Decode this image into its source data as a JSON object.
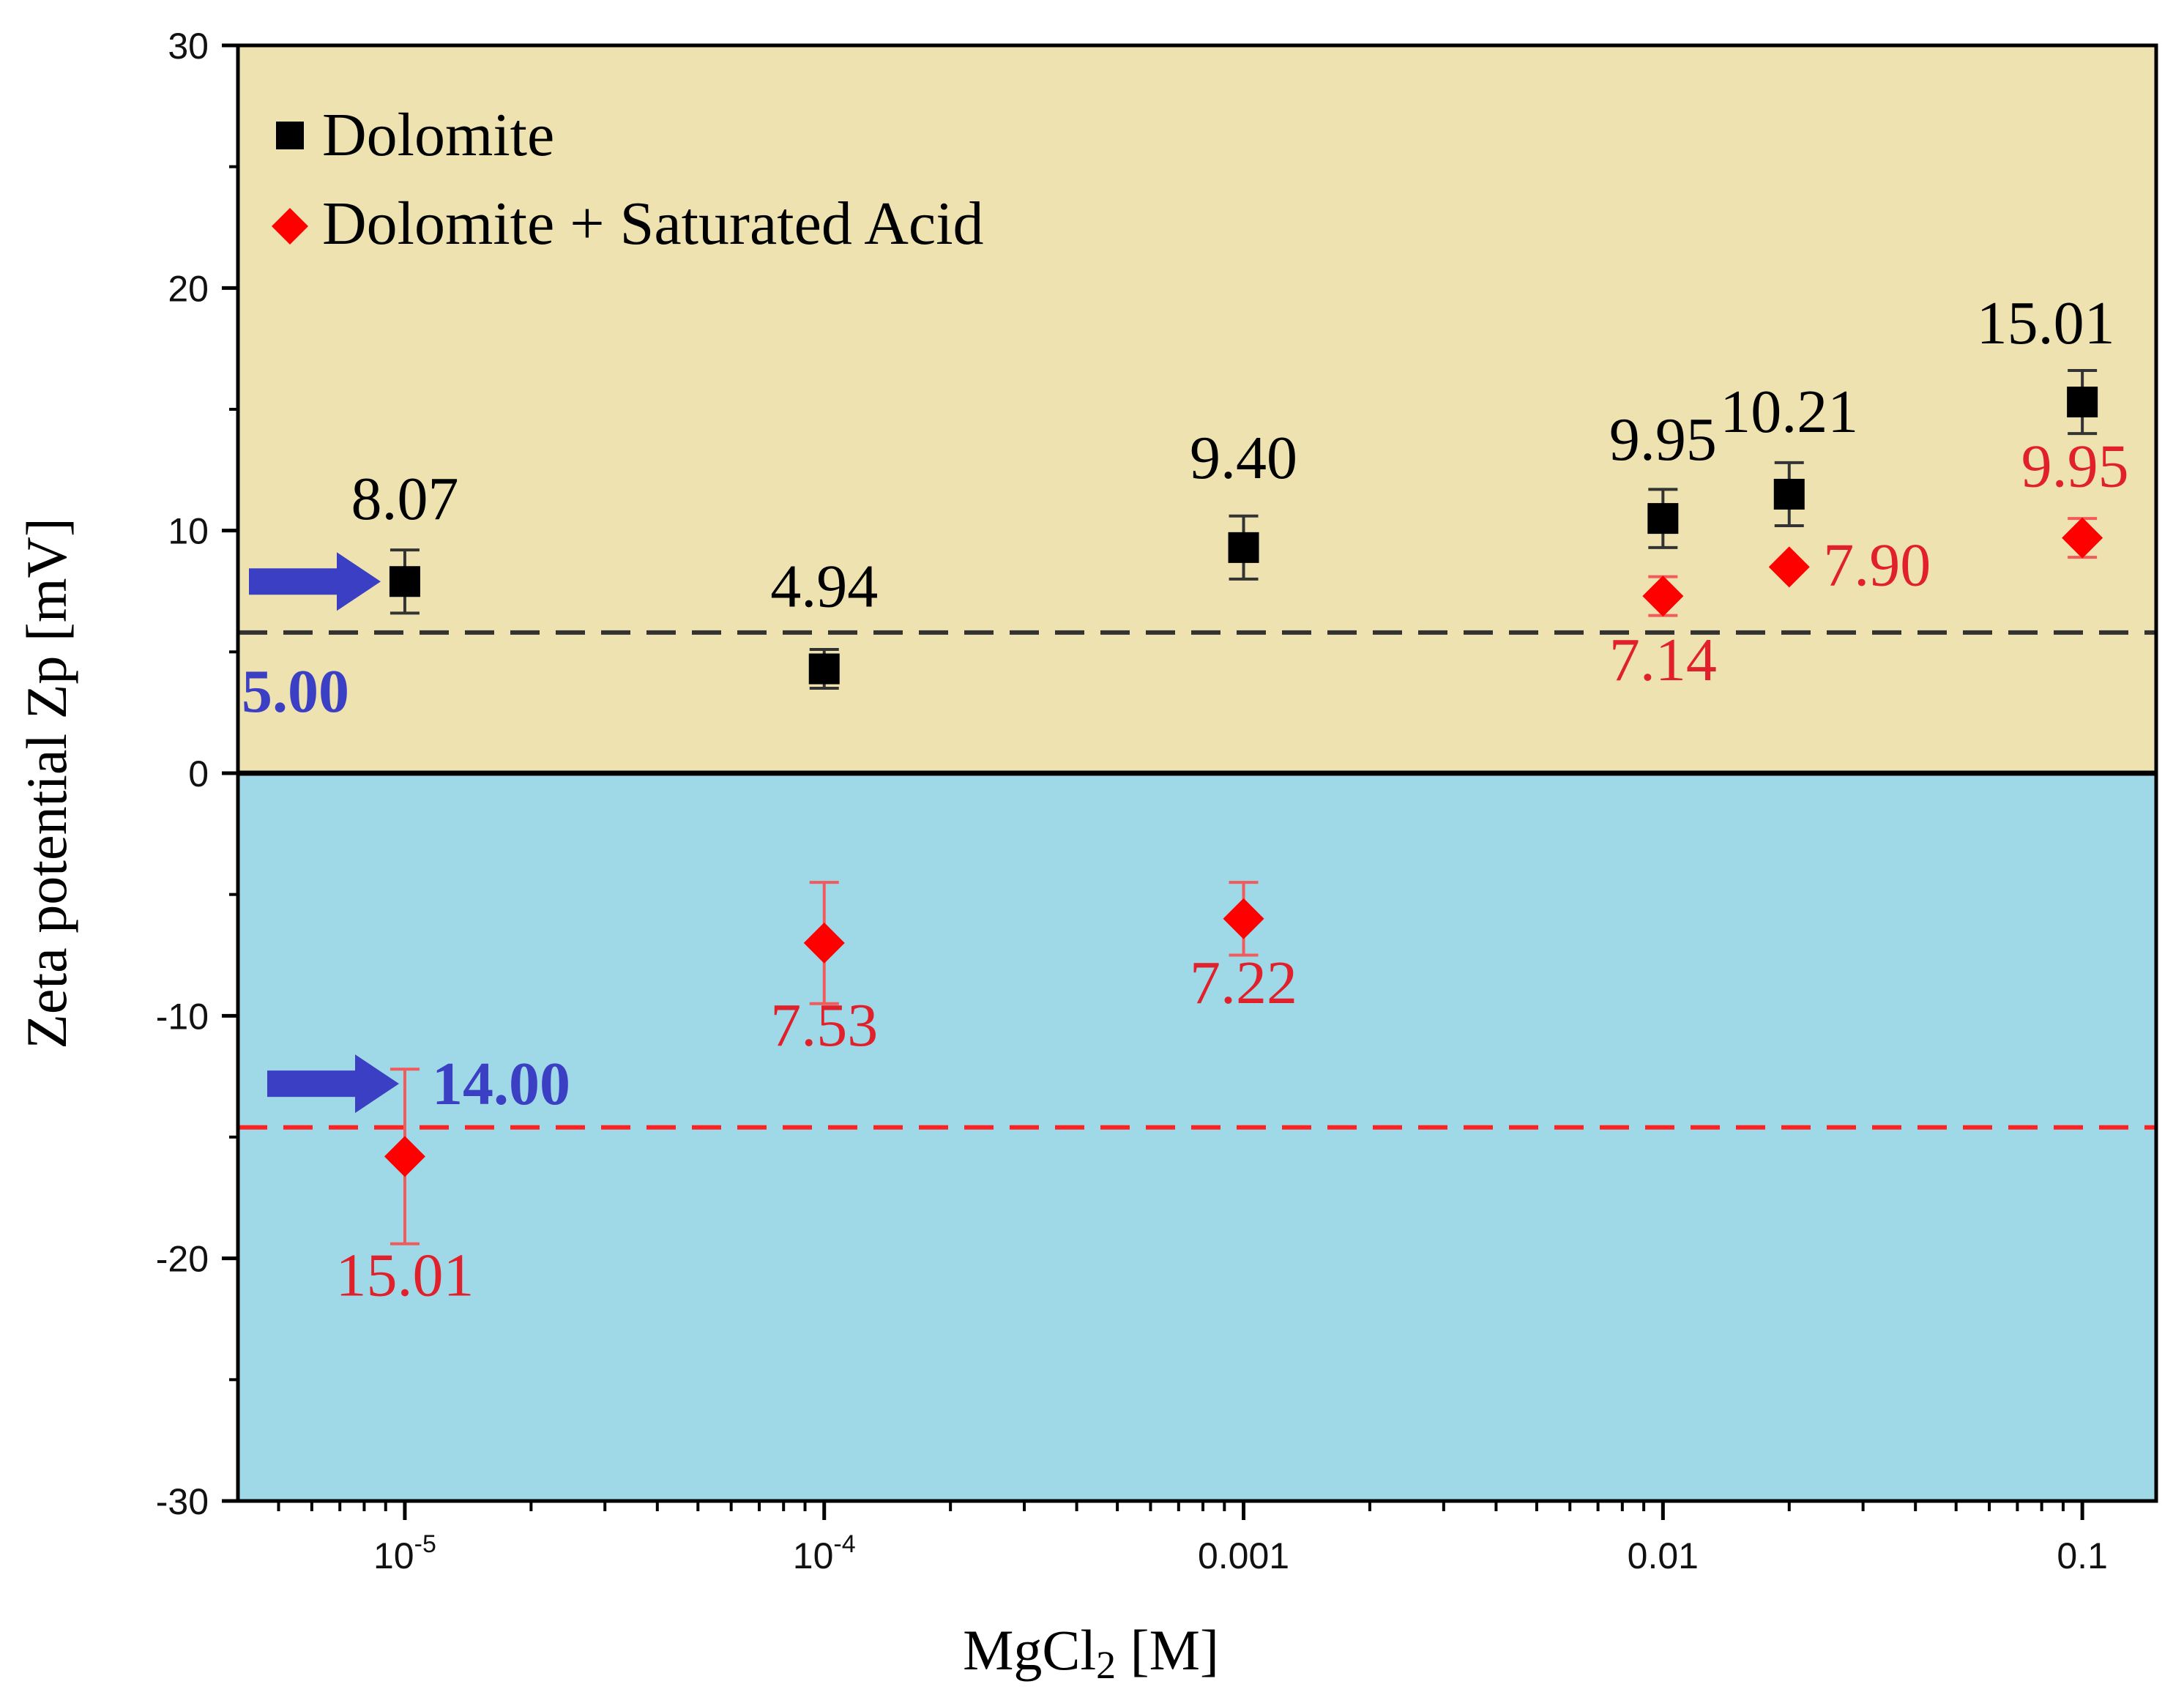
{
  "chart_data": {
    "type": "scatter",
    "title": "",
    "xlabel": "MgCl",
    "xlabel_sub": "2",
    "xlabel_tail": " [M]",
    "ylabel": "Zeta potential Zp [mV]",
    "xscale": "log",
    "xlim": [
      4e-06,
      0.15
    ],
    "ylim": [
      -30,
      30
    ],
    "yticks": [
      -30,
      -20,
      -10,
      0,
      10,
      20,
      30
    ],
    "ytick_labels": [
      "-30",
      "-20",
      "-10",
      "0",
      "10",
      "20",
      "30"
    ],
    "xticks": [
      1e-05,
      0.0001,
      0.001,
      0.01,
      0.1
    ],
    "xtick_labels": [
      {
        "base": "10",
        "sup": "-5"
      },
      {
        "base": "10",
        "sup": "-4"
      },
      {
        "base": "0.001",
        "sup": ""
      },
      {
        "base": "0.01",
        "sup": ""
      },
      {
        "base": "0.1",
        "sup": ""
      }
    ],
    "regions": [
      {
        "name": "positive",
        "from": 0,
        "to": 30,
        "color": "#ede2b0"
      },
      {
        "name": "negative",
        "from": -30,
        "to": 0,
        "color": "#9fd9e8"
      }
    ],
    "series": [
      {
        "name": "Dolomite",
        "marker": "square",
        "color": "#000000",
        "points": [
          {
            "x": 1e-05,
            "y": 7.9,
            "err": 1.3,
            "label": "8.07"
          },
          {
            "x": 0.0001,
            "y": 4.3,
            "err": 0.8,
            "label": "4.94"
          },
          {
            "x": 0.001,
            "y": 9.3,
            "err": 1.3,
            "label": "9.40"
          },
          {
            "x": 0.01,
            "y": 10.5,
            "err": 1.2,
            "label": "9.95"
          },
          {
            "x": 0.02,
            "y": 11.5,
            "err": 1.3,
            "label": "10.21"
          },
          {
            "x": 0.1,
            "y": 15.3,
            "err": 1.3,
            "label": "15.01"
          }
        ]
      },
      {
        "name": "Dolomite + Saturated Acid",
        "marker": "diamond",
        "color": "#ff0000",
        "points": [
          {
            "x": 1e-05,
            "y": -15.8,
            "err": 3.6,
            "label": "15.01"
          },
          {
            "x": 0.0001,
            "y": -7.0,
            "err": 2.5,
            "label": "7.53"
          },
          {
            "x": 0.001,
            "y": -6.0,
            "err": 1.5,
            "label": "7.22"
          },
          {
            "x": 0.01,
            "y": 7.3,
            "err": 0.8,
            "label": "7.14"
          },
          {
            "x": 0.02,
            "y": 8.5,
            "err": 0.0,
            "label": "7.90"
          },
          {
            "x": 0.1,
            "y": 9.7,
            "err": 0.8,
            "label": "9.95"
          }
        ]
      }
    ],
    "reference_lines": [
      {
        "y": 5.8,
        "color": "#333333",
        "style": "dashed",
        "label": "5.00",
        "label_color": "#3b3fc4"
      },
      {
        "y": -14.6,
        "color": "#ff2222",
        "style": "dashed",
        "label": "14.00",
        "label_color": "#3b3fc4"
      }
    ],
    "legend": {
      "position": "top-left"
    }
  }
}
